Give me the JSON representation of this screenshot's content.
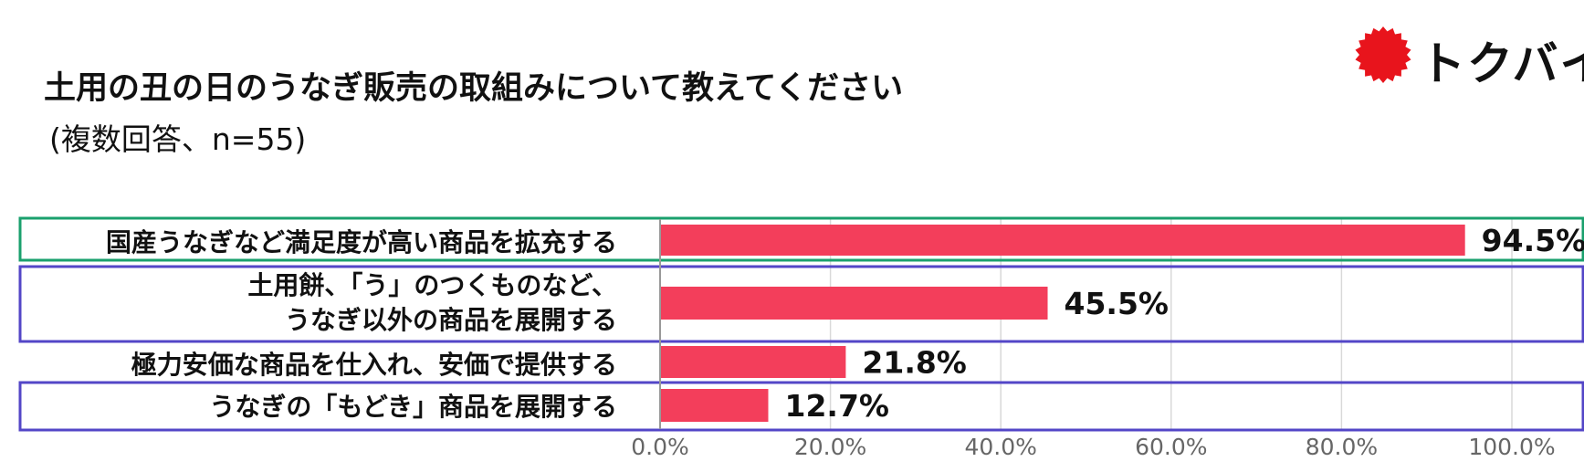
{
  "header": {
    "title": "土用の丑の日のうなぎ販売の取組みについて教えてください",
    "subtitle": "(複数回答、n=55)"
  },
  "logo": {
    "text": "トクバイ",
    "mark_color": "#e8141c",
    "icon": "sunburst-logo-icon"
  },
  "chart_data": {
    "type": "bar",
    "orientation": "horizontal",
    "categories": [
      [
        "国産うなぎなど満足度が高い商品を拡充する"
      ],
      [
        "土用餅、「う」のつくものなど、",
        "うなぎ以外の商品を展開する"
      ],
      [
        "極力安価な商品を仕入れ、安価で提供する"
      ],
      [
        "うなぎの「もどき」商品を展開する"
      ]
    ],
    "values": [
      94.5,
      45.5,
      21.8,
      12.7
    ],
    "value_labels": [
      "94.5%",
      "45.5%",
      "21.8%",
      "12.7%"
    ],
    "xlim": [
      0,
      100
    ],
    "x_ticks": [
      0,
      20,
      40,
      60,
      80,
      100
    ],
    "x_tick_labels": [
      "0.0%",
      "20.0%",
      "40.0%",
      "60.0%",
      "80.0%",
      "100.0%"
    ],
    "grid": "vertical",
    "bar_color": "#f33e5b",
    "highlight_colors": [
      "#1aa06d",
      "#5346c7",
      "#ffffff",
      "#5346c7"
    ]
  }
}
